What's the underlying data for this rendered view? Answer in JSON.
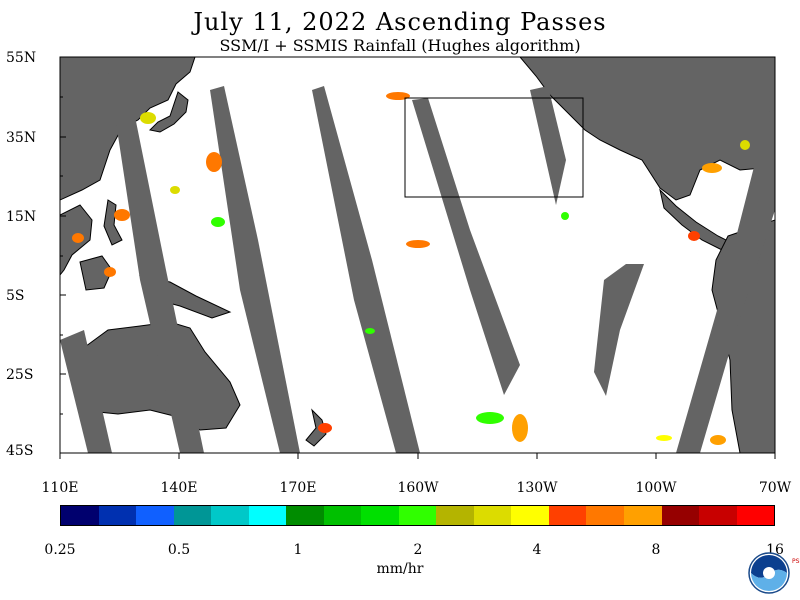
{
  "title": "July 11, 2022  Ascending Passes",
  "subtitle": "SSM/I + SSMIS Rainfall (Hughes algorithm)",
  "lat_labels": [
    "55N",
    "35N",
    "15N",
    "5S",
    "25S",
    "45S"
  ],
  "lon_labels": [
    "110E",
    "140E",
    "170E",
    "160W",
    "130W",
    "100W",
    "70W"
  ],
  "colorbar": {
    "colors": [
      "#00006e",
      "#0030b0",
      "#1060ff",
      "#009696",
      "#00c8c8",
      "#00ffff",
      "#008c00",
      "#00c000",
      "#00e000",
      "#30ff00",
      "#b4b400",
      "#dcdc00",
      "#ffff00",
      "#ff4000",
      "#ff7800",
      "#ffa000",
      "#960000",
      "#c80000",
      "#ff0000"
    ],
    "tick_labels": [
      "0.25",
      "0.5",
      "1",
      "2",
      "4",
      "8",
      "16"
    ]
  },
  "units": "mm/hr",
  "colors": {
    "land": "#646464",
    "no_data_swath": "#646464",
    "ocean": "#ffffff"
  },
  "logo": {
    "text": "NOAA",
    "side_text": "PSL"
  }
}
